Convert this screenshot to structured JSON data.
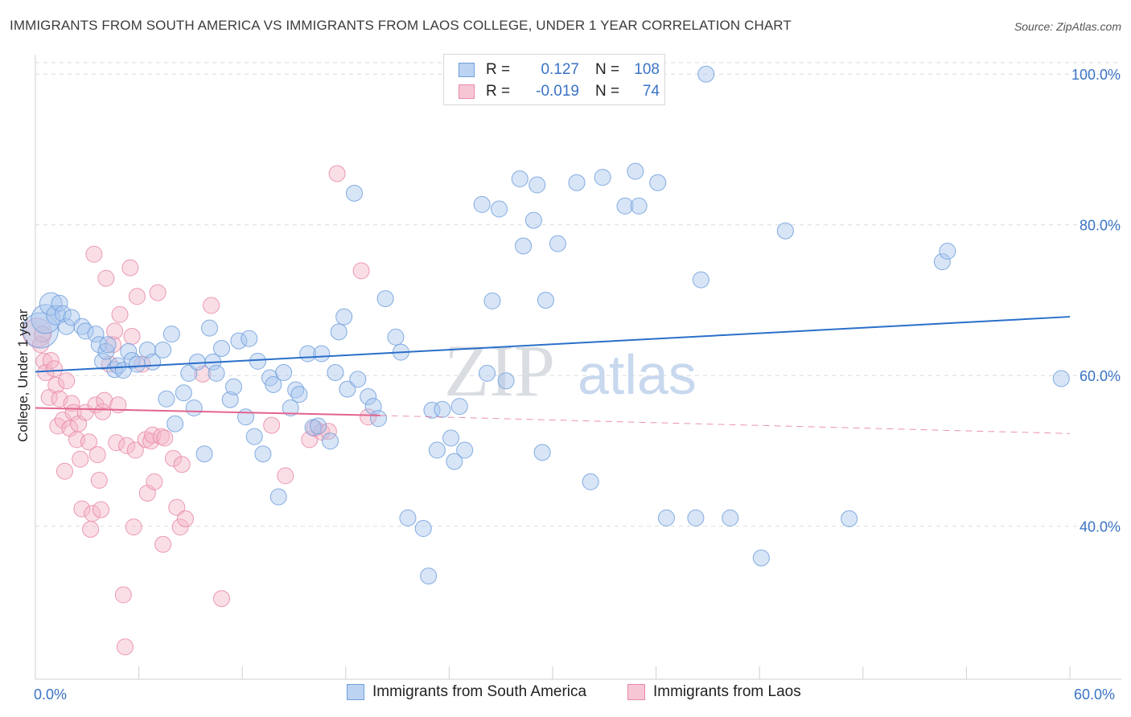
{
  "title": "IMMIGRANTS FROM SOUTH AMERICA VS IMMIGRANTS FROM LAOS COLLEGE, UNDER 1 YEAR CORRELATION CHART",
  "source": "Source: ZipAtlas.com",
  "watermark": {
    "zip": "ZIP",
    "atlas": "atlas"
  },
  "stats": [
    {
      "r_label": "R =",
      "r_value": "0.127",
      "n_label": "N =",
      "n_value": "108"
    },
    {
      "r_label": "R =",
      "r_value": "-0.019",
      "n_label": "N =",
      "n_value": "74"
    }
  ],
  "colors": {
    "blue_fill": "#a8c6ee",
    "blue_stroke": "#6e9fdc",
    "blue_line": "#2a6fca",
    "pink_fill": "#f4b6c8",
    "pink_stroke": "#e88aa6",
    "pink_line": "#e3648e",
    "tick_text": "#3a73c4",
    "grid": "#dcdcdc"
  },
  "chart_data": {
    "type": "scatter",
    "title": "IMMIGRANTS FROM SOUTH AMERICA VS IMMIGRANTS FROM LAOS COLLEGE, UNDER 1 YEAR CORRELATION CHART",
    "xlabel": "",
    "ylabel": "College, Under 1 year",
    "x_tick_labels": [
      "0.0%",
      "60.0%"
    ],
    "y_tick_labels": [
      "40.0%",
      "60.0%",
      "80.0%",
      "100.0%"
    ],
    "y_tick_values": [
      40,
      60,
      80,
      100
    ],
    "xlim": [
      0,
      60
    ],
    "ylim": [
      19.7,
      101.3
    ],
    "grid": true,
    "legend_placement": "bottom-center",
    "series": [
      {
        "name": "Immigrants from South America",
        "color": "#a8c6ee",
        "trend": {
          "x": [
            0,
            60
          ],
          "y": [
            60.5,
            67.8
          ]
        },
        "points": [
          [
            0.3,
            66,
            22
          ],
          [
            0.6,
            67.5,
            18
          ],
          [
            0.9,
            69.5,
            14
          ],
          [
            1.2,
            68,
            12
          ],
          [
            1.4,
            69.6,
            10
          ],
          [
            1.6,
            68.2,
            10
          ],
          [
            1.8,
            66.5,
            10
          ],
          [
            2.1,
            67.7,
            10
          ],
          [
            2.7,
            66.5,
            10
          ],
          [
            2.9,
            65.9,
            10
          ],
          [
            3.5,
            65.5,
            10
          ],
          [
            3.7,
            64.1,
            10
          ],
          [
            3.9,
            61.9,
            10
          ],
          [
            4.1,
            63.2,
            10
          ],
          [
            4.2,
            64.1,
            10
          ],
          [
            4.6,
            60.8,
            10
          ],
          [
            4.8,
            61.3,
            10
          ],
          [
            5.1,
            60.7,
            10
          ],
          [
            5.4,
            63.2,
            10
          ],
          [
            5.6,
            62,
            10
          ],
          [
            5.9,
            61.5,
            10
          ],
          [
            6.5,
            63.4,
            10
          ],
          [
            6.8,
            61.8,
            10
          ],
          [
            7.4,
            63.4,
            10
          ],
          [
            7.6,
            56.9,
            10
          ],
          [
            7.9,
            65.5,
            10
          ],
          [
            8.1,
            53.6,
            10
          ],
          [
            8.6,
            57.7,
            10
          ],
          [
            8.9,
            60.3,
            10
          ],
          [
            9.2,
            55.7,
            10
          ],
          [
            9.4,
            61.8,
            10
          ],
          [
            9.8,
            49.6,
            10
          ],
          [
            10.1,
            66.3,
            10
          ],
          [
            10.3,
            61.8,
            10
          ],
          [
            10.5,
            60.3,
            10
          ],
          [
            10.8,
            63.6,
            10
          ],
          [
            11.3,
            56.8,
            10
          ],
          [
            11.5,
            58.5,
            10
          ],
          [
            11.8,
            64.6,
            10
          ],
          [
            12.2,
            54.5,
            10
          ],
          [
            12.4,
            64.9,
            10
          ],
          [
            12.7,
            51.9,
            10
          ],
          [
            12.9,
            61.9,
            10
          ],
          [
            13.2,
            49.6,
            10
          ],
          [
            13.6,
            59.7,
            10
          ],
          [
            13.8,
            58.8,
            10
          ],
          [
            14.1,
            43.9,
            10
          ],
          [
            14.4,
            60.4,
            10
          ],
          [
            14.8,
            55.7,
            10
          ],
          [
            15.1,
            58.1,
            10
          ],
          [
            15.3,
            57.5,
            10
          ],
          [
            15.8,
            62.9,
            10
          ],
          [
            16.1,
            53.1,
            10
          ],
          [
            16.4,
            53.3,
            10
          ],
          [
            16.6,
            62.9,
            10
          ],
          [
            17.1,
            51.3,
            10
          ],
          [
            17.4,
            60.4,
            10
          ],
          [
            17.6,
            65.8,
            10
          ],
          [
            17.9,
            67.8,
            10
          ],
          [
            18.1,
            58.2,
            10
          ],
          [
            18.5,
            84.2,
            10
          ],
          [
            18.7,
            59.5,
            10
          ],
          [
            19.3,
            57.2,
            10
          ],
          [
            19.6,
            55.9,
            10
          ],
          [
            19.9,
            54.3,
            10
          ],
          [
            20.3,
            70.2,
            10
          ],
          [
            20.9,
            65.1,
            10
          ],
          [
            21.2,
            63.1,
            10
          ],
          [
            21.6,
            41.1,
            10
          ],
          [
            22.5,
            39.7,
            10
          ],
          [
            22.8,
            33.4,
            10
          ],
          [
            23,
            55.4,
            10
          ],
          [
            23.3,
            50.1,
            10
          ],
          [
            23.6,
            55.5,
            10
          ],
          [
            24.1,
            51.7,
            10
          ],
          [
            24.3,
            48.6,
            10
          ],
          [
            24.6,
            55.9,
            10
          ],
          [
            24.9,
            50.1,
            10
          ],
          [
            25.9,
            82.7,
            10
          ],
          [
            26.2,
            60.3,
            10
          ],
          [
            26.5,
            69.9,
            10
          ],
          [
            26.9,
            82.1,
            10
          ],
          [
            27.3,
            59.3,
            10
          ],
          [
            28.1,
            86.1,
            10
          ],
          [
            28.3,
            77.2,
            10
          ],
          [
            28.9,
            80.6,
            10
          ],
          [
            29.1,
            85.3,
            10
          ],
          [
            29.4,
            49.8,
            10
          ],
          [
            29.6,
            70.0,
            10
          ],
          [
            30.3,
            77.5,
            10
          ],
          [
            31.4,
            85.6,
            10
          ],
          [
            32.2,
            45.9,
            10
          ],
          [
            32.9,
            86.3,
            10
          ],
          [
            34.2,
            82.5,
            10
          ],
          [
            34.8,
            87.1,
            10
          ],
          [
            35.0,
            82.5,
            10
          ],
          [
            36.1,
            85.6,
            10
          ],
          [
            36.6,
            41.1,
            10
          ],
          [
            38.3,
            41.1,
            10
          ],
          [
            38.6,
            72.7,
            10
          ],
          [
            38.9,
            100,
            10
          ],
          [
            40.3,
            41.1,
            10
          ],
          [
            42.1,
            35.8,
            10
          ],
          [
            43.5,
            79.2,
            10
          ],
          [
            47.2,
            41,
            10
          ],
          [
            52.6,
            75.1,
            10
          ],
          [
            52.9,
            76.5,
            10
          ],
          [
            59.5,
            59.6,
            10
          ]
        ]
      },
      {
        "name": "Immigrants from Laos",
        "color": "#f4b6c8",
        "trend": {
          "x": [
            0,
            20
          ],
          "y": [
            55.7,
            54.7
          ]
        },
        "trend_dashed": {
          "x": [
            20,
            60
          ],
          "y": [
            54.7,
            52.3
          ]
        },
        "points": [
          [
            0.1,
            65.7,
            18
          ],
          [
            0.3,
            64.1,
            10
          ],
          [
            0.4,
            65.5,
            10
          ],
          [
            0.5,
            61.9,
            10
          ],
          [
            0.6,
            60.4,
            10
          ],
          [
            0.8,
            57.1,
            10
          ],
          [
            0.9,
            62,
            10
          ],
          [
            1.1,
            60.9,
            10
          ],
          [
            1.2,
            58.7,
            10
          ],
          [
            1.3,
            53.3,
            10
          ],
          [
            1.4,
            56.9,
            10
          ],
          [
            1.6,
            54.1,
            10
          ],
          [
            1.7,
            47.3,
            10
          ],
          [
            1.8,
            59.3,
            10
          ],
          [
            2,
            53,
            10
          ],
          [
            2.1,
            56.3,
            10
          ],
          [
            2.2,
            55.1,
            10
          ],
          [
            2.4,
            51.5,
            10
          ],
          [
            2.5,
            53.6,
            10
          ],
          [
            2.6,
            48.9,
            10
          ],
          [
            2.7,
            42.3,
            10
          ],
          [
            2.9,
            55.1,
            10
          ],
          [
            3.1,
            51.2,
            10
          ],
          [
            3.2,
            39.6,
            10
          ],
          [
            3.3,
            41.7,
            10
          ],
          [
            3.4,
            76.1,
            10
          ],
          [
            3.5,
            56.1,
            10
          ],
          [
            3.6,
            49.5,
            10
          ],
          [
            3.7,
            46.1,
            10
          ],
          [
            3.8,
            42.2,
            10
          ],
          [
            3.9,
            55.2,
            10
          ],
          [
            4,
            56.7,
            10
          ],
          [
            4.1,
            72.9,
            10
          ],
          [
            4.3,
            61.5,
            10
          ],
          [
            4.5,
            64.1,
            10
          ],
          [
            4.6,
            65.9,
            10
          ],
          [
            4.7,
            51.1,
            10
          ],
          [
            4.8,
            56.1,
            10
          ],
          [
            4.9,
            68.1,
            10
          ],
          [
            5.1,
            30.9,
            10
          ],
          [
            5.2,
            24,
            10
          ],
          [
            5.3,
            50.7,
            10
          ],
          [
            5.5,
            74.3,
            10
          ],
          [
            5.6,
            65.2,
            10
          ],
          [
            5.7,
            39.9,
            10
          ],
          [
            5.8,
            50.1,
            10
          ],
          [
            5.9,
            70.5,
            10
          ],
          [
            6.2,
            61.5,
            10
          ],
          [
            6.4,
            51.5,
            10
          ],
          [
            6.5,
            44.4,
            10
          ],
          [
            6.7,
            51.3,
            10
          ],
          [
            6.8,
            52.1,
            10
          ],
          [
            6.9,
            45.9,
            10
          ],
          [
            7.1,
            71,
            10
          ],
          [
            7.3,
            51.9,
            10
          ],
          [
            7.4,
            37.6,
            10
          ],
          [
            8,
            49,
            10
          ],
          [
            8.2,
            42.5,
            10
          ],
          [
            8.4,
            39.9,
            10
          ],
          [
            8.5,
            48.2,
            10
          ],
          [
            8.7,
            41,
            10
          ],
          [
            9.7,
            60.2,
            10
          ],
          [
            10.2,
            69.3,
            10
          ],
          [
            10.8,
            30.4,
            10
          ],
          [
            13.7,
            53.4,
            10
          ],
          [
            14.5,
            46.7,
            10
          ],
          [
            15.9,
            51.5,
            10
          ],
          [
            16.2,
            53,
            10
          ],
          [
            16.6,
            52.5,
            10
          ],
          [
            17.0,
            52.6,
            10
          ],
          [
            17.5,
            86.8,
            10
          ],
          [
            18.9,
            73.9,
            10
          ],
          [
            19.3,
            54.5,
            10
          ],
          [
            7.5,
            51.7,
            10
          ]
        ]
      }
    ]
  },
  "legend": [
    "Immigrants from South America",
    "Immigrants from Laos"
  ]
}
